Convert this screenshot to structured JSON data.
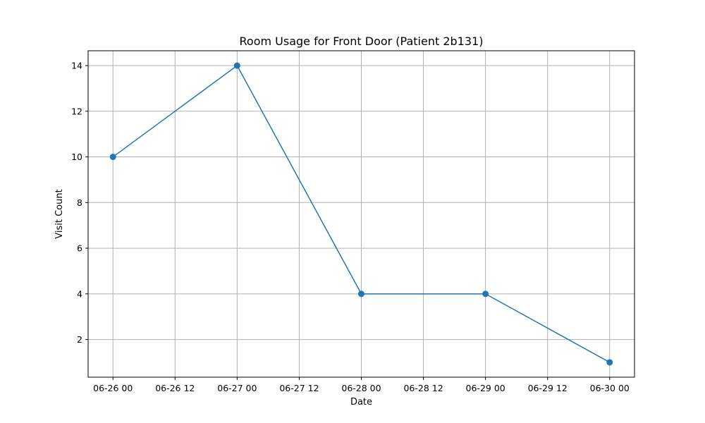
{
  "chart_data": {
    "type": "line",
    "title": "Room Usage for Front Door (Patient 2b131)",
    "xlabel": "Date",
    "ylabel": "Visit Count",
    "x": [
      "2024-06-26 00:00",
      "2024-06-27 00:00",
      "2024-06-28 00:00",
      "2024-06-29 00:00",
      "2024-06-30 00:00"
    ],
    "series": [
      {
        "values": [
          10,
          14,
          4,
          4,
          1
        ],
        "color": "#1f77b4",
        "marker": "circle"
      }
    ],
    "x_ticks": [
      "06-26 00",
      "06-26 12",
      "06-27 00",
      "06-27 12",
      "06-28 00",
      "06-28 12",
      "06-29 00",
      "06-29 12",
      "06-30 00"
    ],
    "y_ticks": [
      2,
      4,
      6,
      8,
      10,
      12,
      14
    ],
    "xlim": [
      "2024-06-25 19:12",
      "2024-06-30 04:48"
    ],
    "ylim": [
      0.35,
      14.65
    ],
    "grid": true,
    "legend": "none"
  }
}
